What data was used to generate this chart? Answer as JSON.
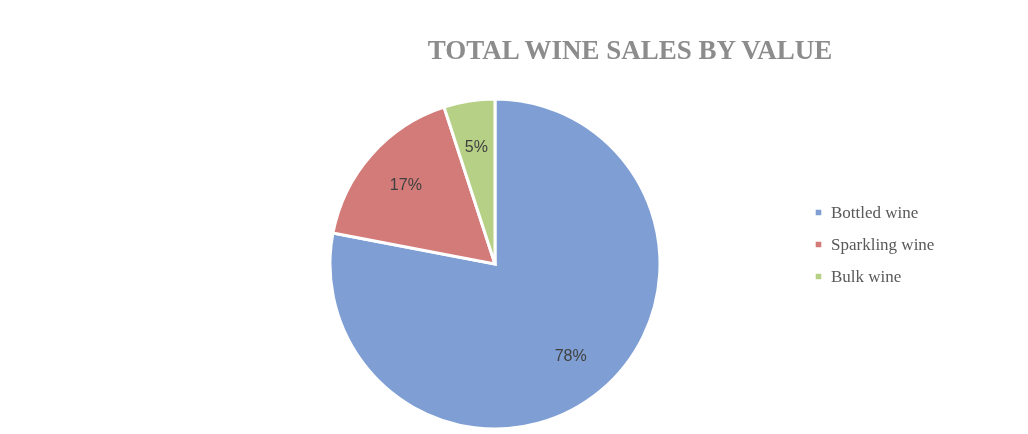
{
  "chart_data": {
    "type": "pie",
    "title": "TOTAL WINE SALES BY VALUE",
    "categories": [
      "Bottled wine",
      "Sparkling wine",
      "Bulk wine"
    ],
    "values": [
      78,
      17,
      5
    ],
    "colors": [
      "#7f9fd4",
      "#d27b79",
      "#b6d185"
    ],
    "value_labels": [
      "78%",
      "17%",
      "5%"
    ],
    "legend": "right"
  }
}
